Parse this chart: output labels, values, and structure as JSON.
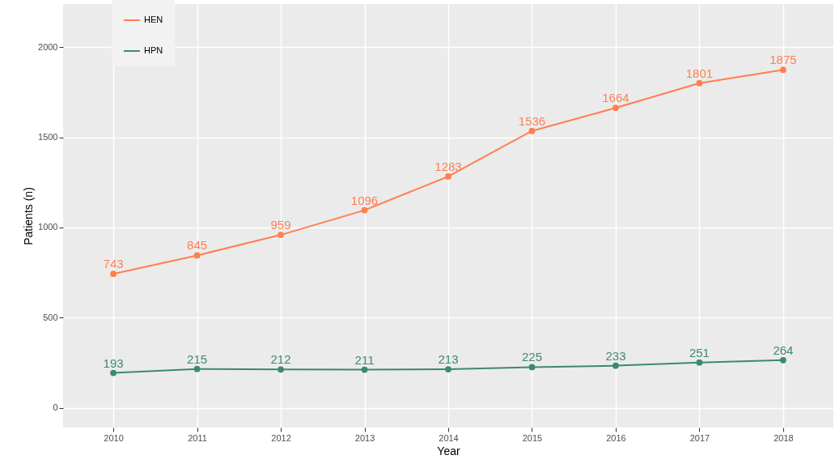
{
  "chart_data": {
    "type": "line",
    "xlabel": "Year",
    "ylabel": "Patients (n)",
    "categories": [
      "2010",
      "2011",
      "2012",
      "2013",
      "2014",
      "2015",
      "2016",
      "2017",
      "2018"
    ],
    "series": [
      {
        "name": "HEN",
        "color": "#ff7f50",
        "values": [
          743,
          845,
          959,
          1096,
          1283,
          1536,
          1664,
          1801,
          1875
        ]
      },
      {
        "name": "HPN",
        "color": "#3d8a6b",
        "values": [
          193,
          215,
          212,
          211,
          213,
          225,
          233,
          251,
          264
        ]
      }
    ],
    "ylim": [
      -110,
      2240
    ],
    "yticks": [
      0,
      500,
      1000,
      1500,
      2000
    ],
    "grid": true,
    "legend": "top left",
    "marker": "circle",
    "line_style": "solid",
    "data_labels": true
  }
}
